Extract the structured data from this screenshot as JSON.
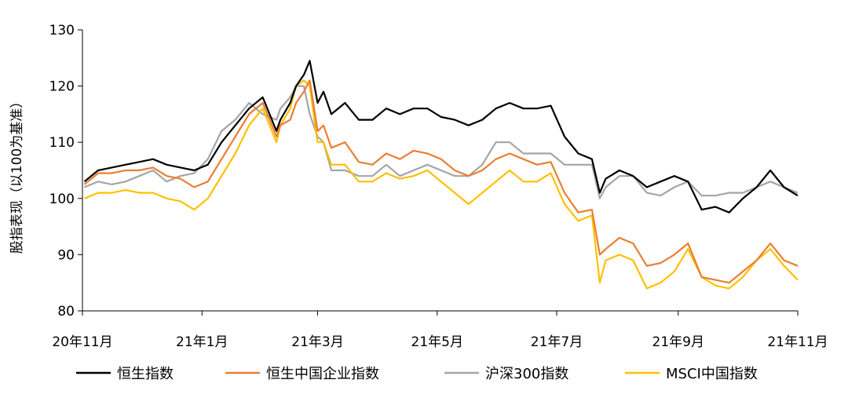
{
  "chart_data": {
    "type": "line",
    "ylabel": "股指表现（以100为基准）",
    "ylim": [
      80,
      130
    ],
    "yticks": [
      80,
      90,
      100,
      110,
      120,
      130
    ],
    "xlim": [
      "2020-11-01",
      "2021-11-01"
    ],
    "x_ticks": [
      {
        "date": "2020-11-01",
        "label": "20年11月"
      },
      {
        "date": "2021-01-01",
        "label": "21年1月"
      },
      {
        "date": "2021-03-01",
        "label": "21年3月"
      },
      {
        "date": "2021-05-01",
        "label": "21年5月"
      },
      {
        "date": "2021-07-01",
        "label": "21年7月"
      },
      {
        "date": "2021-09-01",
        "label": "21年9月"
      },
      {
        "date": "2021-11-01",
        "label": "21年11月"
      }
    ],
    "grid": false,
    "legend_position": "bottom",
    "series": [
      {
        "name": "恒生指数",
        "color": "#000000",
        "points": [
          [
            "2020-11-02",
            103
          ],
          [
            "2020-11-09",
            105
          ],
          [
            "2020-11-16",
            105.5
          ],
          [
            "2020-11-23",
            106
          ],
          [
            "2020-11-30",
            106.5
          ],
          [
            "2020-12-07",
            107
          ],
          [
            "2020-12-14",
            106
          ],
          [
            "2020-12-21",
            105.5
          ],
          [
            "2020-12-28",
            105
          ],
          [
            "2021-01-04",
            106
          ],
          [
            "2021-01-11",
            110
          ],
          [
            "2021-01-18",
            113
          ],
          [
            "2021-01-25",
            116
          ],
          [
            "2021-02-01",
            118
          ],
          [
            "2021-02-08",
            112
          ],
          [
            "2021-02-10",
            114
          ],
          [
            "2021-02-15",
            117
          ],
          [
            "2021-02-18",
            120
          ],
          [
            "2021-02-22",
            122
          ],
          [
            "2021-02-25",
            124.5
          ],
          [
            "2021-03-01",
            117
          ],
          [
            "2021-03-04",
            119
          ],
          [
            "2021-03-08",
            115
          ],
          [
            "2021-03-15",
            117
          ],
          [
            "2021-03-22",
            114
          ],
          [
            "2021-03-29",
            114
          ],
          [
            "2021-04-05",
            116
          ],
          [
            "2021-04-12",
            115
          ],
          [
            "2021-04-19",
            116
          ],
          [
            "2021-04-26",
            116
          ],
          [
            "2021-05-03",
            114.5
          ],
          [
            "2021-05-10",
            114
          ],
          [
            "2021-05-17",
            113
          ],
          [
            "2021-05-24",
            114
          ],
          [
            "2021-05-31",
            116
          ],
          [
            "2021-06-07",
            117
          ],
          [
            "2021-06-14",
            116
          ],
          [
            "2021-06-21",
            116
          ],
          [
            "2021-06-28",
            116.5
          ],
          [
            "2021-07-05",
            111
          ],
          [
            "2021-07-12",
            108
          ],
          [
            "2021-07-19",
            107
          ],
          [
            "2021-07-23",
            101
          ],
          [
            "2021-07-26",
            103.5
          ],
          [
            "2021-08-02",
            105
          ],
          [
            "2021-08-09",
            104
          ],
          [
            "2021-08-16",
            102
          ],
          [
            "2021-08-23",
            103
          ],
          [
            "2021-08-30",
            104
          ],
          [
            "2021-09-06",
            103
          ],
          [
            "2021-09-13",
            98
          ],
          [
            "2021-09-20",
            98.5
          ],
          [
            "2021-09-27",
            97.5
          ],
          [
            "2021-10-04",
            100
          ],
          [
            "2021-10-11",
            102
          ],
          [
            "2021-10-18",
            105
          ],
          [
            "2021-10-25",
            102
          ],
          [
            "2021-11-01",
            100.5
          ]
        ]
      },
      {
        "name": "恒生中国企业指数",
        "color": "#ED7D31",
        "points": [
          [
            "2020-11-02",
            102.5
          ],
          [
            "2020-11-09",
            104.5
          ],
          [
            "2020-11-16",
            104.5
          ],
          [
            "2020-11-23",
            105
          ],
          [
            "2020-11-30",
            105
          ],
          [
            "2020-12-07",
            105.5
          ],
          [
            "2020-12-14",
            104
          ],
          [
            "2020-12-21",
            103.5
          ],
          [
            "2020-12-28",
            102
          ],
          [
            "2021-01-04",
            103
          ],
          [
            "2021-01-11",
            107
          ],
          [
            "2021-01-18",
            111
          ],
          [
            "2021-01-25",
            115
          ],
          [
            "2021-02-01",
            117
          ],
          [
            "2021-02-08",
            111
          ],
          [
            "2021-02-10",
            113
          ],
          [
            "2021-02-15",
            114
          ],
          [
            "2021-02-18",
            117
          ],
          [
            "2021-02-22",
            119
          ],
          [
            "2021-02-25",
            121
          ],
          [
            "2021-03-01",
            112
          ],
          [
            "2021-03-04",
            113
          ],
          [
            "2021-03-08",
            109
          ],
          [
            "2021-03-15",
            110
          ],
          [
            "2021-03-22",
            106.5
          ],
          [
            "2021-03-29",
            106
          ],
          [
            "2021-04-05",
            108
          ],
          [
            "2021-04-12",
            107
          ],
          [
            "2021-04-19",
            108.5
          ],
          [
            "2021-04-26",
            108
          ],
          [
            "2021-05-03",
            107
          ],
          [
            "2021-05-10",
            105
          ],
          [
            "2021-05-17",
            104
          ],
          [
            "2021-05-24",
            105
          ],
          [
            "2021-05-31",
            107
          ],
          [
            "2021-06-07",
            108
          ],
          [
            "2021-06-14",
            107
          ],
          [
            "2021-06-21",
            106
          ],
          [
            "2021-06-28",
            106.5
          ],
          [
            "2021-07-05",
            101
          ],
          [
            "2021-07-12",
            97.5
          ],
          [
            "2021-07-19",
            98
          ],
          [
            "2021-07-23",
            90
          ],
          [
            "2021-07-26",
            91
          ],
          [
            "2021-08-02",
            93
          ],
          [
            "2021-08-09",
            92
          ],
          [
            "2021-08-16",
            88
          ],
          [
            "2021-08-23",
            88.5
          ],
          [
            "2021-08-30",
            90
          ],
          [
            "2021-09-06",
            92
          ],
          [
            "2021-09-13",
            86
          ],
          [
            "2021-09-20",
            85.5
          ],
          [
            "2021-09-27",
            85
          ],
          [
            "2021-10-04",
            87
          ],
          [
            "2021-10-11",
            89
          ],
          [
            "2021-10-18",
            92
          ],
          [
            "2021-10-25",
            89
          ],
          [
            "2021-11-01",
            88
          ]
        ]
      },
      {
        "name": "沪深300指数",
        "color": "#A5A5A5",
        "points": [
          [
            "2020-11-02",
            102
          ],
          [
            "2020-11-09",
            103
          ],
          [
            "2020-11-16",
            102.5
          ],
          [
            "2020-11-23",
            103
          ],
          [
            "2020-11-30",
            104
          ],
          [
            "2020-12-07",
            105
          ],
          [
            "2020-12-14",
            103
          ],
          [
            "2020-12-21",
            104
          ],
          [
            "2020-12-28",
            104.5
          ],
          [
            "2021-01-04",
            107
          ],
          [
            "2021-01-11",
            112
          ],
          [
            "2021-01-18",
            114
          ],
          [
            "2021-01-25",
            117
          ],
          [
            "2021-02-01",
            115
          ],
          [
            "2021-02-08",
            114
          ],
          [
            "2021-02-10",
            116
          ],
          [
            "2021-02-15",
            118
          ],
          [
            "2021-02-18",
            120
          ],
          [
            "2021-02-22",
            120
          ],
          [
            "2021-02-25",
            115
          ],
          [
            "2021-03-01",
            111
          ],
          [
            "2021-03-04",
            110
          ],
          [
            "2021-03-08",
            105
          ],
          [
            "2021-03-15",
            105
          ],
          [
            "2021-03-22",
            104
          ],
          [
            "2021-03-29",
            104
          ],
          [
            "2021-04-05",
            106
          ],
          [
            "2021-04-12",
            104
          ],
          [
            "2021-04-19",
            105
          ],
          [
            "2021-04-26",
            106
          ],
          [
            "2021-05-03",
            105
          ],
          [
            "2021-05-10",
            104
          ],
          [
            "2021-05-17",
            104
          ],
          [
            "2021-05-24",
            106
          ],
          [
            "2021-05-31",
            110
          ],
          [
            "2021-06-07",
            110
          ],
          [
            "2021-06-14",
            108
          ],
          [
            "2021-06-21",
            108
          ],
          [
            "2021-06-28",
            108
          ],
          [
            "2021-07-05",
            106
          ],
          [
            "2021-07-12",
            106
          ],
          [
            "2021-07-19",
            106
          ],
          [
            "2021-07-23",
            100
          ],
          [
            "2021-07-26",
            102
          ],
          [
            "2021-08-02",
            104
          ],
          [
            "2021-08-09",
            104
          ],
          [
            "2021-08-16",
            101
          ],
          [
            "2021-08-23",
            100.5
          ],
          [
            "2021-08-30",
            102
          ],
          [
            "2021-09-06",
            103
          ],
          [
            "2021-09-13",
            100.5
          ],
          [
            "2021-09-20",
            100.5
          ],
          [
            "2021-09-27",
            101
          ],
          [
            "2021-10-04",
            101
          ],
          [
            "2021-10-11",
            102
          ],
          [
            "2021-10-18",
            103
          ],
          [
            "2021-10-25",
            102
          ],
          [
            "2021-11-01",
            101
          ]
        ]
      },
      {
        "name": "MSCI中国指数",
        "color": "#FFC000",
        "points": [
          [
            "2020-11-02",
            100
          ],
          [
            "2020-11-09",
            101
          ],
          [
            "2020-11-16",
            101
          ],
          [
            "2020-11-23",
            101.5
          ],
          [
            "2020-11-30",
            101
          ],
          [
            "2020-12-07",
            101
          ],
          [
            "2020-12-14",
            100
          ],
          [
            "2020-12-21",
            99.5
          ],
          [
            "2020-12-28",
            98
          ],
          [
            "2021-01-04",
            100
          ],
          [
            "2021-01-11",
            104
          ],
          [
            "2021-01-18",
            108
          ],
          [
            "2021-01-25",
            113
          ],
          [
            "2021-02-01",
            116
          ],
          [
            "2021-02-08",
            110
          ],
          [
            "2021-02-10",
            113
          ],
          [
            "2021-02-15",
            116
          ],
          [
            "2021-02-18",
            120
          ],
          [
            "2021-02-22",
            121
          ],
          [
            "2021-02-25",
            120
          ],
          [
            "2021-03-01",
            110
          ],
          [
            "2021-03-04",
            110
          ],
          [
            "2021-03-08",
            106
          ],
          [
            "2021-03-15",
            106
          ],
          [
            "2021-03-22",
            103
          ],
          [
            "2021-03-29",
            103
          ],
          [
            "2021-04-05",
            104.5
          ],
          [
            "2021-04-12",
            103.5
          ],
          [
            "2021-04-19",
            104
          ],
          [
            "2021-04-26",
            105
          ],
          [
            "2021-05-03",
            103
          ],
          [
            "2021-05-10",
            101
          ],
          [
            "2021-05-17",
            99
          ],
          [
            "2021-05-24",
            101
          ],
          [
            "2021-05-31",
            103
          ],
          [
            "2021-06-07",
            105
          ],
          [
            "2021-06-14",
            103
          ],
          [
            "2021-06-21",
            103
          ],
          [
            "2021-06-28",
            104.5
          ],
          [
            "2021-07-05",
            99
          ],
          [
            "2021-07-12",
            96
          ],
          [
            "2021-07-19",
            97
          ],
          [
            "2021-07-23",
            85
          ],
          [
            "2021-07-26",
            89
          ],
          [
            "2021-08-02",
            90
          ],
          [
            "2021-08-09",
            89
          ],
          [
            "2021-08-16",
            84
          ],
          [
            "2021-08-23",
            85
          ],
          [
            "2021-08-30",
            87
          ],
          [
            "2021-09-06",
            91
          ],
          [
            "2021-09-13",
            86
          ],
          [
            "2021-09-20",
            84.5
          ],
          [
            "2021-09-27",
            84
          ],
          [
            "2021-10-04",
            86
          ],
          [
            "2021-10-11",
            89
          ],
          [
            "2021-10-18",
            91
          ],
          [
            "2021-10-25",
            88
          ],
          [
            "2021-11-01",
            85.5
          ]
        ]
      }
    ]
  }
}
